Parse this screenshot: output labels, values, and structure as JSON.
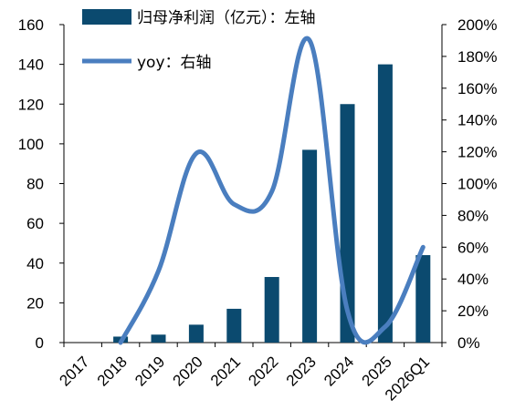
{
  "chart_data": {
    "type": "bar+line",
    "title": "",
    "categories": [
      "2017",
      "2018",
      "2019",
      "2020",
      "2021",
      "2022",
      "2023",
      "2024",
      "2025",
      "2026Q1"
    ],
    "series": [
      {
        "name": "归母净利润（亿元）：左轴",
        "type": "bar",
        "axis": "left",
        "color": "#0b4a6f",
        "values": [
          0,
          3,
          4,
          9,
          17,
          33,
          97,
          120,
          140,
          44
        ]
      },
      {
        "name": "yoy：右轴",
        "type": "line",
        "axis": "right",
        "color": "#4a7ebf",
        "values": [
          null,
          0,
          45,
          119,
          87,
          95,
          190,
          20,
          10,
          60
        ]
      }
    ],
    "left_axis": {
      "min": 0,
      "max": 160,
      "step": 20,
      "ticks": [
        "0",
        "20",
        "40",
        "60",
        "80",
        "100",
        "120",
        "140",
        "160"
      ]
    },
    "right_axis": {
      "min": 0,
      "max": 200,
      "step": 20,
      "ticks": [
        "0%",
        "20%",
        "40%",
        "60%",
        "80%",
        "100%",
        "120%",
        "140%",
        "160%",
        "180%",
        "200%"
      ]
    },
    "legend_position": "top-left",
    "grid": false
  }
}
